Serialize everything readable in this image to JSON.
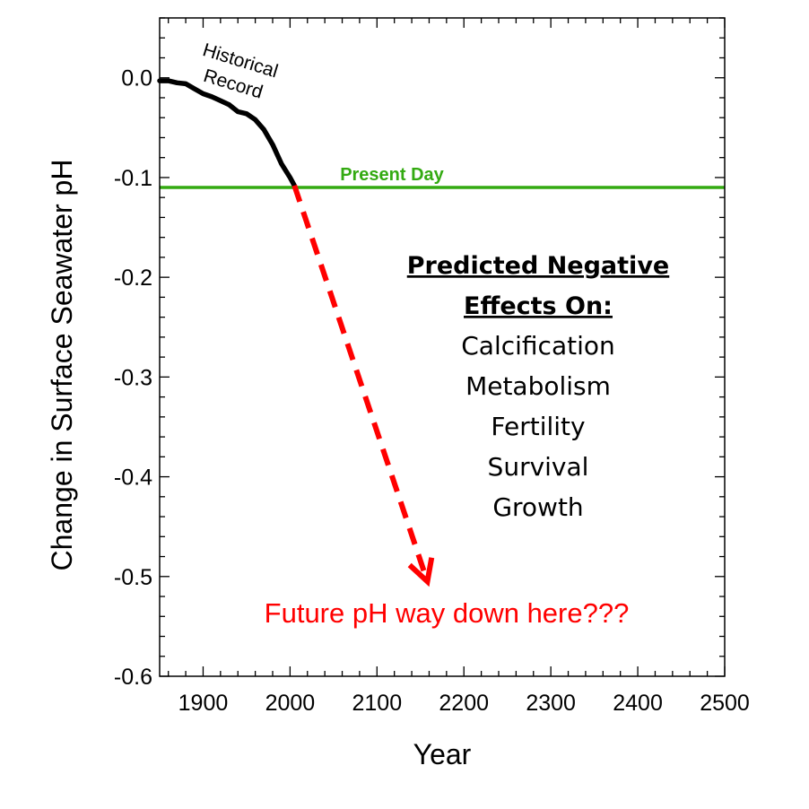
{
  "chart_data": {
    "type": "line",
    "xlabel": "Year",
    "ylabel": "Change in Surface Seawater pH",
    "xlim": [
      1850,
      2500
    ],
    "ylim": [
      -0.6,
      0.06
    ],
    "x_ticks": [
      1900,
      2000,
      2100,
      2200,
      2300,
      2400,
      2500
    ],
    "x_tick_labels": [
      "1900",
      "2000",
      "2100",
      "2200",
      "2300",
      "2400",
      "2500"
    ],
    "y_ticks": [
      0.0,
      -0.1,
      -0.2,
      -0.3,
      -0.4,
      -0.5,
      -0.6
    ],
    "y_tick_labels": [
      "0.0",
      "-0.1",
      "-0.2",
      "-0.3",
      "-0.4",
      "-0.5",
      "-0.6"
    ],
    "series": [
      {
        "name": "Historical Record",
        "color": "#000000",
        "style": "solid",
        "x": [
          1850,
          1860,
          1870,
          1880,
          1890,
          1900,
          1910,
          1920,
          1930,
          1940,
          1950,
          1960,
          1970,
          1980,
          1990,
          2000,
          2005
        ],
        "y": [
          -0.003,
          -0.003,
          -0.005,
          -0.006,
          -0.011,
          -0.016,
          -0.019,
          -0.023,
          -0.027,
          -0.034,
          -0.036,
          -0.042,
          -0.052,
          -0.067,
          -0.086,
          -0.1,
          -0.108
        ]
      },
      {
        "name": "projection",
        "color": "#ff0000",
        "style": "dashed-arrow",
        "x": [
          2005,
          2158
        ],
        "y": [
          -0.108,
          -0.505
        ]
      },
      {
        "name": "Present Day",
        "color": "#33aa11",
        "style": "horizontal-line",
        "y": -0.11
      }
    ],
    "annotations": {
      "historical": [
        "Historical",
        "Record"
      ],
      "present_day": "Present Day",
      "future": "Future pH way down here???",
      "effects_heading": [
        "Predicted Negative",
        "Effects On:"
      ],
      "effects_items": [
        "Calcification",
        "Metabolism",
        "Fertility",
        "Survival",
        "Growth"
      ]
    },
    "colors": {
      "historical": "#000000",
      "present_day": "#33aa11",
      "projection": "#ff0000",
      "future_text": "#ff0000"
    },
    "grid": false
  }
}
